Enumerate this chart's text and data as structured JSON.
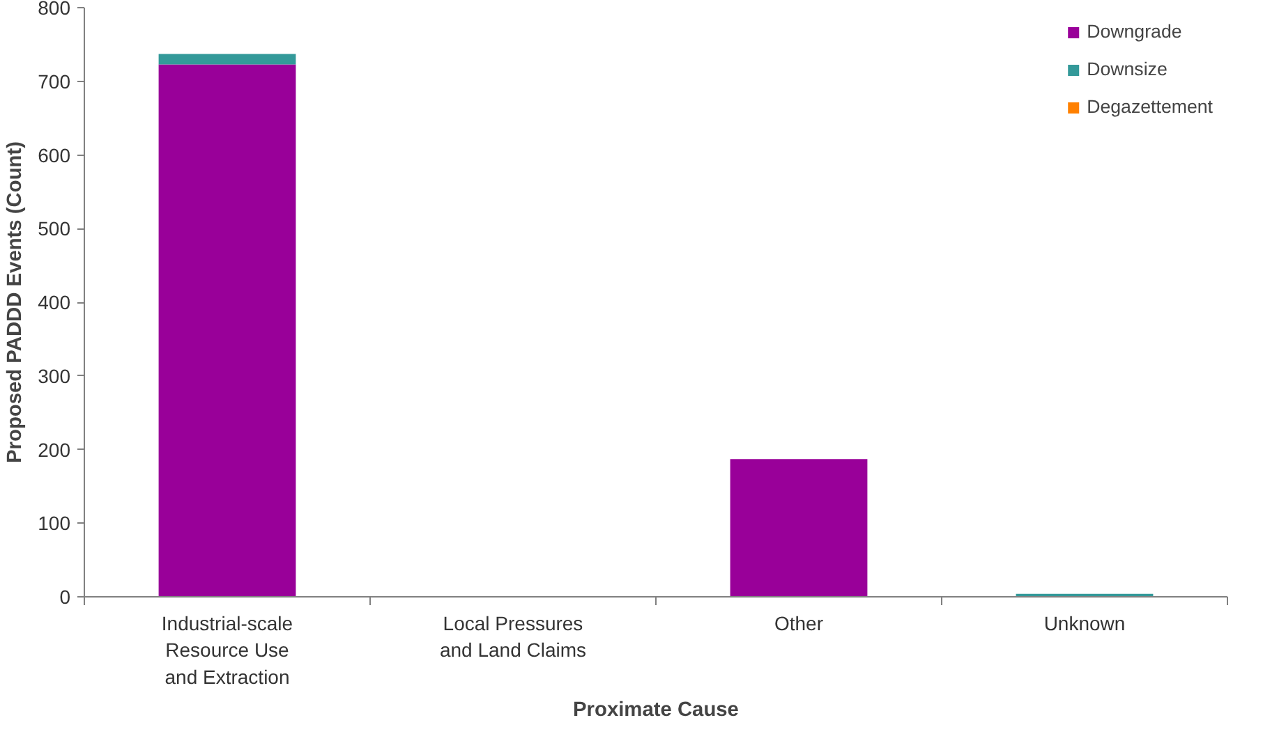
{
  "chart_data": {
    "type": "bar",
    "stacked": true,
    "xlabel": "Proximate Cause",
    "ylabel": "Proposed PADDD Events (Count)",
    "categories": [
      "Industrial-scale\nResource Use\nand Extraction",
      "Local Pressures\nand Land Claims",
      "Other",
      "Unknown"
    ],
    "series": [
      {
        "name": "Downgrade",
        "color": "#990099",
        "values": [
          723,
          0,
          187,
          0
        ]
      },
      {
        "name": "Downsize",
        "color": "#339999",
        "values": [
          14,
          0,
          0,
          4
        ]
      },
      {
        "name": "Degazettement",
        "color": "#ff8000",
        "values": [
          0,
          0,
          0,
          0
        ]
      }
    ],
    "ylim": [
      0,
      800
    ],
    "yticks": [
      0,
      100,
      200,
      300,
      400,
      500,
      600,
      700,
      800
    ],
    "grid": false,
    "legend": "top right"
  }
}
